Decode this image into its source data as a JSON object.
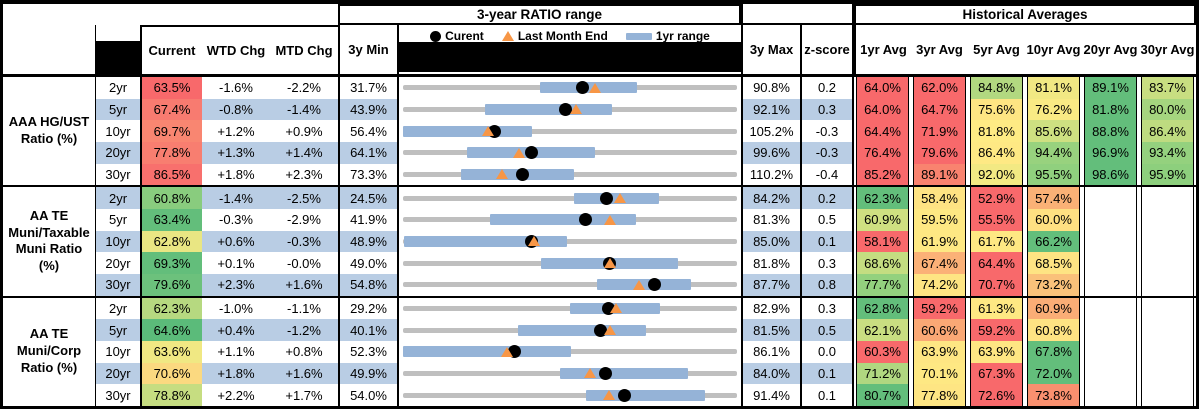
{
  "header": {
    "range_title": "3-year RATIO range",
    "hist_title": "Historical Averages",
    "legend": {
      "current": "Curent",
      "last_month": "Last Month End",
      "range": "1yr range"
    },
    "columns": {
      "current": "Current",
      "wtd": "WTD Chg",
      "mtd": "MTD Chg",
      "min": "3y Min",
      "max": "3y Max",
      "z": "z-score",
      "avgs": [
        "1yr Avg",
        "3yr Avg",
        "5yr Avg",
        "10yr Avg",
        "20yr Avg",
        "30yr Avg"
      ]
    }
  },
  "palette": {
    "stripe_blue": "#B9CDE4",
    "track_gray": "#BFBFBF",
    "bar_1yr_blue": "#95B3D7",
    "triangle_orange": "#F79646",
    "dot_black": "#000000",
    "heat_red": "#F8696B",
    "heat_yellow": "#FFEB84",
    "heat_green": "#63BE7B"
  },
  "chart_data": {
    "type": "table",
    "title": "3-year RATIO range",
    "legend_entries": [
      "Curent (black dot)",
      "Last Month End (orange triangle)",
      "1yr range (blue bar)"
    ],
    "note": "Each row is a bullet chart: gray track spans 3y Min to 3y Max; blue bar is 1yr range; black dot = current ratio; orange triangle = last month end (current minus MTD change). r1_lo/r1_hi and lm_v estimated from plotted positions.",
    "groups": [
      {
        "label": "AAA HG/UST Ratio (%)",
        "label_lines": [
          "AAA HG/UST",
          "Ratio (%)"
        ],
        "rows": [
          {
            "tenor": "2yr",
            "current": "63.5%",
            "current_bg": "#F8696B",
            "wtd": "-1.6%",
            "mtd": "-2.2%",
            "min": "31.7%",
            "max": "90.8%",
            "z": "0.2",
            "min_v": 31.7,
            "max_v": 90.8,
            "cur_v": 63.5,
            "lm_v": 65.7,
            "r1_lo": 55.9,
            "r1_hi": 73.1,
            "avgs": [
              {
                "v": "64.0%",
                "bg": "#F8696B"
              },
              {
                "v": "62.0%",
                "bg": "#F8696B"
              },
              {
                "v": "84.8%",
                "bg": "#B2D880"
              },
              {
                "v": "81.1%",
                "bg": "#F1E883"
              },
              {
                "v": "89.1%",
                "bg": "#63BE7B"
              },
              {
                "v": "83.7%",
                "bg": "#C8DE81"
              }
            ]
          },
          {
            "tenor": "5yr",
            "current": "67.4%",
            "current_bg": "#F87B70",
            "wtd": "-0.8%",
            "mtd": "-1.4%",
            "min": "43.9%",
            "max": "92.1%",
            "z": "0.3",
            "min_v": 43.9,
            "max_v": 92.1,
            "cur_v": 67.4,
            "lm_v": 68.8,
            "r1_lo": 55.7,
            "r1_hi": 74.1,
            "avgs": [
              {
                "v": "64.0%",
                "bg": "#F8696B"
              },
              {
                "v": "64.7%",
                "bg": "#F8696B"
              },
              {
                "v": "75.6%",
                "bg": "#FEE583"
              },
              {
                "v": "76.2%",
                "bg": "#F9EA84"
              },
              {
                "v": "81.8%",
                "bg": "#63BE7B"
              },
              {
                "v": "80.0%",
                "bg": "#A5D57F"
              }
            ]
          },
          {
            "tenor": "10yr",
            "current": "69.7%",
            "current_bg": "#F98671",
            "wtd": "+1.2%",
            "mtd": "+0.9%",
            "min": "56.4%",
            "max": "105.2%",
            "z": "-0.3",
            "min_v": 56.4,
            "max_v": 105.2,
            "cur_v": 69.7,
            "lm_v": 68.8,
            "r1_lo": 56.4,
            "r1_hi": 75.2,
            "avgs": [
              {
                "v": "64.4%",
                "bg": "#F8696B"
              },
              {
                "v": "71.9%",
                "bg": "#F8696B"
              },
              {
                "v": "81.8%",
                "bg": "#FEEB84"
              },
              {
                "v": "85.6%",
                "bg": "#CEE081"
              },
              {
                "v": "88.8%",
                "bg": "#63BE7B"
              },
              {
                "v": "86.4%",
                "bg": "#BEDB80"
              }
            ]
          },
          {
            "tenor": "20yr",
            "current": "77.8%",
            "current_bg": "#F87E70",
            "wtd": "+1.3%",
            "mtd": "+1.4%",
            "min": "64.1%",
            "max": "99.6%",
            "z": "-0.3",
            "min_v": 64.1,
            "max_v": 99.6,
            "cur_v": 77.8,
            "lm_v": 76.4,
            "r1_lo": 70.9,
            "r1_hi": 84.5,
            "avgs": [
              {
                "v": "76.4%",
                "bg": "#F8696B"
              },
              {
                "v": "79.6%",
                "bg": "#F8696B"
              },
              {
                "v": "86.4%",
                "bg": "#FEE984"
              },
              {
                "v": "94.4%",
                "bg": "#98D27E"
              },
              {
                "v": "96.9%",
                "bg": "#63BE7B"
              },
              {
                "v": "93.4%",
                "bg": "#94D17E"
              }
            ]
          },
          {
            "tenor": "30yr",
            "current": "86.5%",
            "current_bg": "#F8706D",
            "wtd": "+1.8%",
            "mtd": "+2.3%",
            "min": "73.3%",
            "max": "110.2%",
            "z": "-0.4",
            "min_v": 73.3,
            "max_v": 110.2,
            "cur_v": 86.5,
            "lm_v": 84.2,
            "r1_lo": 79.7,
            "r1_hi": 92.2,
            "avgs": [
              {
                "v": "85.2%",
                "bg": "#F8696B"
              },
              {
                "v": "89.1%",
                "bg": "#F9836F"
              },
              {
                "v": "92.0%",
                "bg": "#F2E983"
              },
              {
                "v": "95.5%",
                "bg": "#90D07E"
              },
              {
                "v": "98.6%",
                "bg": "#63BE7B"
              },
              {
                "v": "95.9%",
                "bg": "#8DCF7D"
              }
            ]
          }
        ]
      },
      {
        "label": "AA TE Muni/Taxable Muni Ratio (%)",
        "label_lines": [
          "AA TE",
          "Muni/Taxable",
          "Muni Ratio",
          "(%)"
        ],
        "rows": [
          {
            "tenor": "2yr",
            "current": "60.8%",
            "current_bg": "#89CC7E",
            "wtd": "-1.4%",
            "mtd": "-2.5%",
            "min": "24.5%",
            "max": "84.2%",
            "z": "0.2",
            "min_v": 24.5,
            "max_v": 84.2,
            "cur_v": 60.8,
            "lm_v": 63.3,
            "r1_lo": 55.1,
            "r1_hi": 70.3,
            "avgs": [
              {
                "v": "62.3%",
                "bg": "#63BE7B"
              },
              {
                "v": "58.4%",
                "bg": "#FEE383"
              },
              {
                "v": "52.9%",
                "bg": "#F8696B"
              },
              {
                "v": "57.4%",
                "bg": "#FAB176"
              }
            ]
          },
          {
            "tenor": "5yr",
            "current": "63.4%",
            "current_bg": "#63BE7B",
            "wtd": "-0.3%",
            "mtd": "-2.9%",
            "min": "41.9%",
            "max": "81.3%",
            "z": "0.5",
            "min_v": 41.9,
            "max_v": 81.3,
            "cur_v": 63.4,
            "lm_v": 66.3,
            "r1_lo": 52.2,
            "r1_hi": 69.4,
            "avgs": [
              {
                "v": "60.9%",
                "bg": "#CFE081"
              },
              {
                "v": "59.5%",
                "bg": "#FEE883"
              },
              {
                "v": "55.5%",
                "bg": "#F8696B"
              },
              {
                "v": "60.0%",
                "bg": "#FEE082"
              }
            ]
          },
          {
            "tenor": "10yr",
            "current": "62.8%",
            "current_bg": "#E9E683",
            "wtd": "+0.6%",
            "mtd": "-0.3%",
            "min": "48.9%",
            "max": "85.0%",
            "z": "0.1",
            "min_v": 48.9,
            "max_v": 85.0,
            "cur_v": 62.8,
            "lm_v": 63.1,
            "r1_lo": 49.0,
            "r1_hi": 66.6,
            "avgs": [
              {
                "v": "58.1%",
                "bg": "#F8696B"
              },
              {
                "v": "61.9%",
                "bg": "#FEE883"
              },
              {
                "v": "61.7%",
                "bg": "#FEE883"
              },
              {
                "v": "66.2%",
                "bg": "#63BE7B"
              }
            ]
          },
          {
            "tenor": "20yr",
            "current": "69.3%",
            "current_bg": "#63BE7B",
            "wtd": "+0.1%",
            "mtd": "-0.0%",
            "min": "49.0%",
            "max": "81.8%",
            "z": "0.3",
            "min_v": 49.0,
            "max_v": 81.8,
            "cur_v": 69.3,
            "lm_v": 69.3,
            "r1_lo": 62.6,
            "r1_hi": 76.0,
            "avgs": [
              {
                "v": "68.6%",
                "bg": "#C4DD81"
              },
              {
                "v": "67.4%",
                "bg": "#FBB177"
              },
              {
                "v": "64.4%",
                "bg": "#F8696B"
              },
              {
                "v": "68.5%",
                "bg": "#FEE483"
              }
            ]
          },
          {
            "tenor": "30yr",
            "current": "79.6%",
            "current_bg": "#6CC17C",
            "wtd": "+2.3%",
            "mtd": "+1.6%",
            "min": "54.8%",
            "max": "87.7%",
            "z": "0.8",
            "min_v": 54.8,
            "max_v": 87.7,
            "cur_v": 79.6,
            "lm_v": 78.0,
            "r1_lo": 73.9,
            "r1_hi": 83.2,
            "avgs": [
              {
                "v": "77.7%",
                "bg": "#93D17E"
              },
              {
                "v": "74.2%",
                "bg": "#FEE583"
              },
              {
                "v": "70.7%",
                "bg": "#F8696B"
              },
              {
                "v": "73.2%",
                "bg": "#FAC17A"
              }
            ]
          }
        ]
      },
      {
        "label": "AA TE Muni/Corp Ratio (%)",
        "label_lines": [
          "AA TE",
          "Muni/Corp",
          "Ratio (%)"
        ],
        "rows": [
          {
            "tenor": "2yr",
            "current": "62.3%",
            "current_bg": "#B6D980",
            "wtd": "-1.0%",
            "mtd": "-1.1%",
            "min": "29.2%",
            "max": "82.9%",
            "z": "0.3",
            "min_v": 29.2,
            "max_v": 82.9,
            "cur_v": 62.3,
            "lm_v": 63.4,
            "r1_lo": 56.1,
            "r1_hi": 70.5,
            "avgs": [
              {
                "v": "62.8%",
                "bg": "#63BE7B"
              },
              {
                "v": "59.2%",
                "bg": "#F8696B"
              },
              {
                "v": "61.3%",
                "bg": "#FEE883"
              },
              {
                "v": "60.9%",
                "bg": "#FAAD76"
              }
            ]
          },
          {
            "tenor": "5yr",
            "current": "64.6%",
            "current_bg": "#5BBB7A",
            "wtd": "+0.4%",
            "mtd": "-1.2%",
            "min": "40.1%",
            "max": "81.5%",
            "z": "0.5",
            "min_v": 40.1,
            "max_v": 81.5,
            "cur_v": 64.6,
            "lm_v": 65.8,
            "r1_lo": 54.4,
            "r1_hi": 70.2,
            "avgs": [
              {
                "v": "62.1%",
                "bg": "#C9DE81"
              },
              {
                "v": "60.6%",
                "bg": "#FAA875"
              },
              {
                "v": "59.2%",
                "bg": "#F8696B"
              },
              {
                "v": "60.8%",
                "bg": "#FEE383"
              }
            ]
          },
          {
            "tenor": "10yr",
            "current": "63.6%",
            "current_bg": "#F0E883",
            "wtd": "+1.1%",
            "mtd": "+0.8%",
            "min": "52.3%",
            "max": "86.1%",
            "z": "0.0",
            "min_v": 52.3,
            "max_v": 86.1,
            "cur_v": 63.6,
            "lm_v": 62.8,
            "r1_lo": 52.3,
            "r1_hi": 69.3,
            "avgs": [
              {
                "v": "60.3%",
                "bg": "#F8696B"
              },
              {
                "v": "63.9%",
                "bg": "#FEE683"
              },
              {
                "v": "63.9%",
                "bg": "#FEE683"
              },
              {
                "v": "67.8%",
                "bg": "#63BE7B"
              }
            ]
          },
          {
            "tenor": "20yr",
            "current": "70.6%",
            "current_bg": "#FBD980",
            "wtd": "+1.8%",
            "mtd": "+1.6%",
            "min": "49.9%",
            "max": "84.0%",
            "z": "0.1",
            "min_v": 49.9,
            "max_v": 84.0,
            "cur_v": 70.6,
            "lm_v": 69.0,
            "r1_lo": 65.9,
            "r1_hi": 79.0,
            "avgs": [
              {
                "v": "71.2%",
                "bg": "#B0D780"
              },
              {
                "v": "70.1%",
                "bg": "#FEE883"
              },
              {
                "v": "67.3%",
                "bg": "#F8696B"
              },
              {
                "v": "72.0%",
                "bg": "#63BE7B"
              }
            ]
          },
          {
            "tenor": "30yr",
            "current": "78.8%",
            "current_bg": "#C6DD81",
            "wtd": "+2.2%",
            "mtd": "+1.7%",
            "min": "54.0%",
            "max": "91.4%",
            "z": "0.1",
            "min_v": 54.0,
            "max_v": 91.4,
            "cur_v": 78.8,
            "lm_v": 77.1,
            "r1_lo": 74.5,
            "r1_hi": 87.8,
            "avgs": [
              {
                "v": "80.7%",
                "bg": "#63BE7B"
              },
              {
                "v": "77.8%",
                "bg": "#FEE583"
              },
              {
                "v": "72.6%",
                "bg": "#F8696B"
              },
              {
                "v": "73.8%",
                "bg": "#F9906F"
              }
            ]
          }
        ]
      }
    ]
  }
}
